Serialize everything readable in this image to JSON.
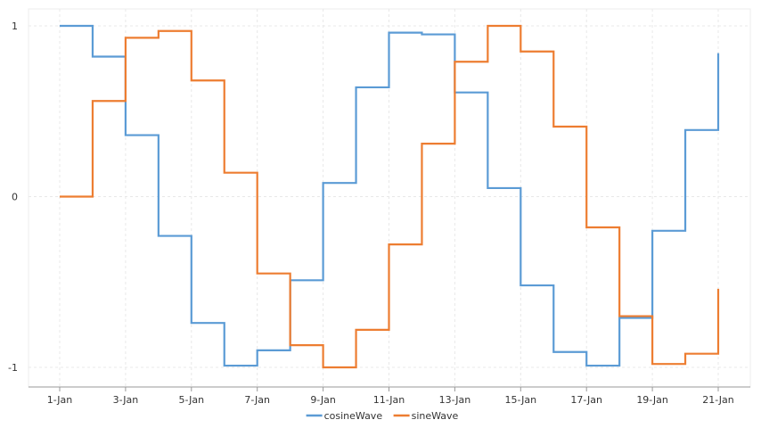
{
  "chart_data": {
    "type": "line",
    "subtype": "step",
    "title": "",
    "xlabel": "",
    "ylabel": "",
    "x": [
      "1-Jan",
      "2-Jan",
      "3-Jan",
      "4-Jan",
      "5-Jan",
      "6-Jan",
      "7-Jan",
      "8-Jan",
      "9-Jan",
      "10-Jan",
      "11-Jan",
      "12-Jan",
      "13-Jan",
      "14-Jan",
      "15-Jan",
      "16-Jan",
      "17-Jan",
      "18-Jan",
      "19-Jan",
      "20-Jan",
      "21-Jan"
    ],
    "x_tick_labels": [
      "1-Jan",
      "3-Jan",
      "5-Jan",
      "7-Jan",
      "9-Jan",
      "11-Jan",
      "13-Jan",
      "15-Jan",
      "17-Jan",
      "19-Jan",
      "21-Jan"
    ],
    "y_tick_labels": [
      "1",
      "0",
      "-1"
    ],
    "y_ticks": [
      1,
      0,
      -1
    ],
    "ylim": [
      -1.1,
      1.1
    ],
    "grid": true,
    "legend_position": "bottom-center",
    "series": [
      {
        "name": "cosineWave",
        "color": "#5b9bd5",
        "values": [
          1.0,
          0.82,
          0.36,
          -0.23,
          -0.74,
          -0.99,
          -0.9,
          -0.49,
          0.08,
          0.64,
          0.96,
          0.95,
          0.61,
          0.05,
          -0.52,
          -0.91,
          -0.99,
          -0.71,
          -0.2,
          0.39,
          0.84
        ]
      },
      {
        "name": "sineWave",
        "color": "#ed7d31",
        "values": [
          0.0,
          0.56,
          0.93,
          0.97,
          0.68,
          0.14,
          -0.45,
          -0.87,
          -1.0,
          -0.78,
          -0.28,
          0.31,
          0.79,
          1.0,
          0.85,
          0.41,
          -0.18,
          -0.7,
          -0.98,
          -0.92,
          -0.54
        ]
      }
    ]
  }
}
